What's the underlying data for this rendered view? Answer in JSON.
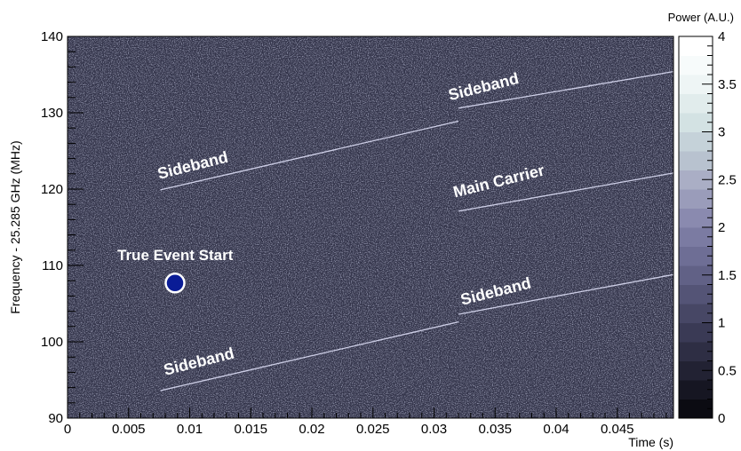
{
  "chart_data": {
    "type": "heatmap",
    "xlabel": "Time (s)",
    "ylabel": "Frequency - 25.285 GHz (MHz)",
    "xlim": [
      0,
      0.0496
    ],
    "ylim": [
      90,
      140
    ],
    "x_ticks": [
      "0",
      "0.005",
      "0.01",
      "0.015",
      "0.02",
      "0.025",
      "0.03",
      "0.035",
      "0.04",
      "0.045"
    ],
    "x_tick_values": [
      0,
      0.005,
      0.01,
      0.015,
      0.02,
      0.025,
      0.03,
      0.035,
      0.04,
      0.045
    ],
    "y_ticks": [
      "90",
      "100",
      "110",
      "120",
      "130",
      "140"
    ],
    "y_tick_values": [
      90,
      100,
      110,
      120,
      130,
      140
    ],
    "colorbar": {
      "label": "Power (A.U.)",
      "range": [
        0,
        4
      ],
      "ticks": [
        "0",
        "0.5",
        "1",
        "1.5",
        "2",
        "2.5",
        "3",
        "3.5",
        "4"
      ],
      "tick_values": [
        0,
        0.5,
        1,
        1.5,
        2,
        2.5,
        3,
        3.5,
        4
      ],
      "colors": [
        "#0b0b12",
        "#161622",
        "#222233",
        "#2e2e44",
        "#3a3a55",
        "#474765",
        "#545476",
        "#616186",
        "#6e6e95",
        "#7b7ba2",
        "#8a8aaf",
        "#9a9cba",
        "#aaaec5",
        "#b8c2cf",
        "#c5d2d9",
        "#d3e2e3",
        "#e1ecec",
        "#eef5f5",
        "#f7fbfb",
        "#ffffff"
      ]
    },
    "background_color": "#33344a",
    "series": [
      {
        "points": [
          [
            0.0076,
            119.9
          ],
          [
            0.032,
            128.9
          ]
        ]
      },
      {
        "points": [
          [
            0.032,
            130.6
          ],
          [
            0.0496,
            135.4
          ]
        ]
      },
      {
        "points": [
          [
            0.032,
            117.1
          ],
          [
            0.0496,
            122.1
          ]
        ]
      },
      {
        "points": [
          [
            0.0076,
            93.6
          ],
          [
            0.032,
            102.6
          ]
        ]
      },
      {
        "points": [
          [
            0.032,
            103.6
          ],
          [
            0.0496,
            108.8
          ]
        ]
      }
    ],
    "marker": {
      "label": "True Event Start",
      "x": 0.0088,
      "y": 107.7,
      "color": "#0a1c96"
    },
    "annotations": [
      {
        "text": "Sideband",
        "x": 0.0075,
        "y": 121.3,
        "angle": -14
      },
      {
        "text": "Sideband",
        "x": 0.0313,
        "y": 131.6,
        "angle": -14
      },
      {
        "text": "Main Carrier",
        "x": 0.0317,
        "y": 118.9,
        "angle": -14
      },
      {
        "text": "Sideband",
        "x": 0.008,
        "y": 95.6,
        "angle": -14
      },
      {
        "text": "Sideband",
        "x": 0.0323,
        "y": 104.8,
        "angle": -14
      }
    ]
  }
}
